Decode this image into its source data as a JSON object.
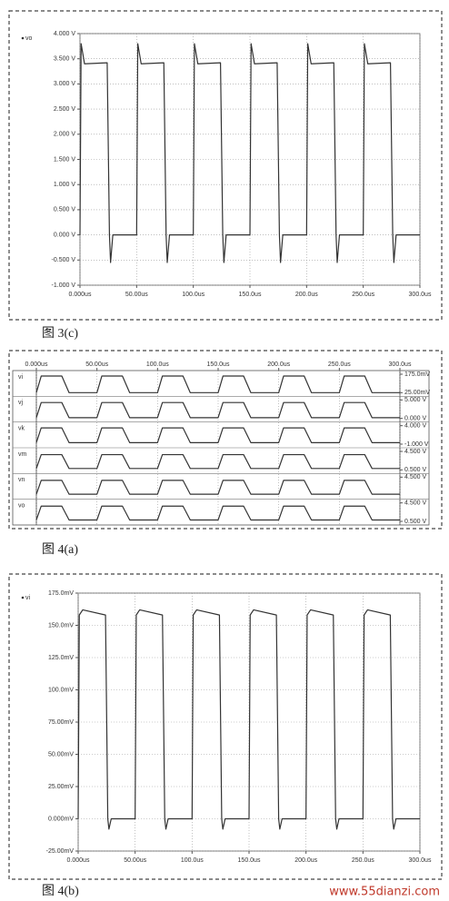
{
  "chart_data": [
    {
      "type": "line",
      "caption": "图 3(c)",
      "x": [
        0,
        1,
        4,
        24,
        26,
        27,
        29,
        50,
        51,
        54,
        74,
        76,
        77,
        79,
        100,
        101,
        104,
        124,
        126,
        127,
        129,
        150,
        151,
        154,
        174,
        176,
        177,
        179,
        200,
        201,
        204,
        224,
        226,
        227,
        229,
        250,
        251,
        254,
        274,
        276,
        277,
        279,
        300
      ],
      "series": [
        {
          "name": "vo",
          "color": "#333333",
          "values": [
            0,
            3.8,
            3.4,
            3.42,
            0,
            -0.55,
            0,
            0,
            3.8,
            3.4,
            3.42,
            0,
            -0.55,
            0,
            0,
            3.8,
            3.4,
            3.42,
            0,
            -0.55,
            0,
            0,
            3.8,
            3.4,
            3.42,
            0,
            -0.55,
            0,
            0,
            3.8,
            3.4,
            3.42,
            0,
            -0.55,
            0,
            0,
            3.8,
            3.4,
            3.42,
            0,
            -0.55,
            0,
            0
          ]
        }
      ],
      "xlim": [
        0,
        300
      ],
      "xticks": [
        {
          "value": 0,
          "label": "0.000us"
        },
        {
          "value": 50,
          "label": "50.00us"
        },
        {
          "value": 100,
          "label": "100.0us"
        },
        {
          "value": 150,
          "label": "150.0us"
        },
        {
          "value": 200,
          "label": "200.0us"
        },
        {
          "value": 250,
          "label": "250.0us"
        },
        {
          "value": 300,
          "label": "300.0us"
        }
      ],
      "ylim": [
        -1,
        4
      ],
      "yticks": [
        {
          "value": 4,
          "label": "4.000 V"
        },
        {
          "value": 3.5,
          "label": "3.500 V"
        },
        {
          "value": 3,
          "label": "3.000 V"
        },
        {
          "value": 2.5,
          "label": "2.500 V"
        },
        {
          "value": 2,
          "label": "2.000 V"
        },
        {
          "value": 1.5,
          "label": "1.500 V"
        },
        {
          "value": 1,
          "label": "1.000 V"
        },
        {
          "value": 0.5,
          "label": "0.500 V"
        },
        {
          "value": 0,
          "label": "0.000 V"
        },
        {
          "value": -0.5,
          "label": "-0.500 V"
        },
        {
          "value": -1,
          "label": "-1.000 V"
        }
      ],
      "grid": true
    },
    {
      "type": "strip",
      "caption": "图 4(a)",
      "color": "#333333",
      "x": [
        0,
        4,
        21,
        27,
        50,
        54,
        71,
        77,
        100,
        104,
        121,
        127,
        150,
        154,
        171,
        177,
        200,
        204,
        221,
        227,
        250,
        254,
        271,
        277,
        300
      ],
      "xlim": [
        0,
        300
      ],
      "xticks": [
        {
          "value": 0,
          "label": "0.000us"
        },
        {
          "value": 50,
          "label": "50.00us"
        },
        {
          "value": 100,
          "label": "100.0us"
        },
        {
          "value": 150,
          "label": "150.0us"
        },
        {
          "value": 200,
          "label": "200.0us"
        },
        {
          "value": 250,
          "label": "250.0us"
        },
        {
          "value": 300,
          "label": "300.0us"
        }
      ],
      "panels": [
        {
          "name": "vi",
          "ylim": [
            25,
            175
          ],
          "yticks": [
            {
              "value": 175,
              "label": "175.0mV"
            },
            {
              "value": 25,
              "label": "25.00mV"
            }
          ],
          "values": [
            25,
            160,
            160,
            25,
            25,
            160,
            160,
            25,
            25,
            160,
            160,
            25,
            25,
            160,
            160,
            25,
            25,
            160,
            160,
            25,
            25,
            160,
            160,
            25,
            25
          ]
        },
        {
          "name": "vj",
          "ylim": [
            0,
            5
          ],
          "yticks": [
            {
              "value": 5,
              "label": "5.000 V"
            },
            {
              "value": 0,
              "label": "0.000 V"
            }
          ],
          "values": [
            0.2,
            4.3,
            4.3,
            0.2,
            0.2,
            4.3,
            4.3,
            0.2,
            0.2,
            4.3,
            4.3,
            0.2,
            0.2,
            4.3,
            4.3,
            0.2,
            0.2,
            4.3,
            4.3,
            0.2,
            0.2,
            4.3,
            4.3,
            0.2,
            0.2
          ]
        },
        {
          "name": "vk",
          "ylim": [
            -1,
            4
          ],
          "yticks": [
            {
              "value": 4,
              "label": "4.000 V"
            },
            {
              "value": -1,
              "label": "-1.000 V"
            }
          ],
          "values": [
            -0.6,
            3.4,
            3.4,
            -0.6,
            -0.6,
            3.4,
            3.4,
            -0.6,
            -0.6,
            3.4,
            3.4,
            -0.6,
            -0.6,
            3.4,
            3.4,
            -0.6,
            -0.6,
            3.4,
            3.4,
            -0.6,
            -0.6,
            3.4,
            3.4,
            -0.6,
            -0.6
          ]
        },
        {
          "name": "vm",
          "ylim": [
            0.5,
            4.5
          ],
          "yticks": [
            {
              "value": 4.5,
              "label": "4.500 V"
            },
            {
              "value": 0.5,
              "label": "0.500 V"
            }
          ],
          "values": [
            0.8,
            3.8,
            3.8,
            0.8,
            0.8,
            3.8,
            3.8,
            0.8,
            0.8,
            3.8,
            3.8,
            0.8,
            0.8,
            3.8,
            3.8,
            0.8,
            0.8,
            3.8,
            3.8,
            0.8,
            0.8,
            3.8,
            3.8,
            0.8,
            0.8
          ]
        },
        {
          "name": "vn",
          "ylim": [
            0.5,
            4.5
          ],
          "yticks": [
            {
              "value": 4.5,
              "label": "4.500 V"
            }
          ],
          "values": [
            0.8,
            3.8,
            3.8,
            0.8,
            0.8,
            3.8,
            3.8,
            0.8,
            0.8,
            3.8,
            3.8,
            0.8,
            0.8,
            3.8,
            3.8,
            0.8,
            0.8,
            3.8,
            3.8,
            0.8,
            0.8,
            3.8,
            3.8,
            0.8,
            0.8
          ]
        },
        {
          "name": "vo",
          "ylim": [
            0.5,
            4.5
          ],
          "yticks": [
            {
              "value": 4.5,
              "label": "4.500 V"
            },
            {
              "value": 0.5,
              "label": "0.500 V"
            }
          ],
          "values": [
            0.8,
            3.8,
            3.8,
            0.8,
            0.8,
            3.8,
            3.8,
            0.8,
            0.8,
            3.8,
            3.8,
            0.8,
            0.8,
            3.8,
            3.8,
            0.8,
            0.8,
            3.8,
            3.8,
            0.8,
            0.8,
            3.8,
            3.8,
            0.8,
            0.8
          ]
        }
      ],
      "grid": true
    },
    {
      "type": "line",
      "caption": "图 4(b)",
      "x": [
        0,
        1,
        4,
        24,
        26,
        27,
        29,
        50,
        51,
        54,
        74,
        76,
        77,
        79,
        100,
        101,
        104,
        124,
        126,
        127,
        129,
        150,
        151,
        154,
        174,
        176,
        177,
        179,
        200,
        201,
        204,
        224,
        226,
        227,
        229,
        250,
        251,
        254,
        274,
        276,
        277,
        279,
        300
      ],
      "series": [
        {
          "name": "vi",
          "color": "#333333",
          "values": [
            0,
            158,
            162,
            158,
            0,
            -8,
            0,
            0,
            158,
            162,
            158,
            0,
            -8,
            0,
            0,
            158,
            162,
            158,
            0,
            -8,
            0,
            0,
            158,
            162,
            158,
            0,
            -8,
            0,
            0,
            158,
            162,
            158,
            0,
            -8,
            0,
            0,
            158,
            162,
            158,
            0,
            -8,
            0,
            0
          ]
        }
      ],
      "xlim": [
        0,
        300
      ],
      "xticks": [
        {
          "value": 0,
          "label": "0.000us"
        },
        {
          "value": 50,
          "label": "50.00us"
        },
        {
          "value": 100,
          "label": "100.0us"
        },
        {
          "value": 150,
          "label": "150.0us"
        },
        {
          "value": 200,
          "label": "200.0us"
        },
        {
          "value": 250,
          "label": "250.0us"
        },
        {
          "value": 300,
          "label": "300.0us"
        }
      ],
      "ylim": [
        -25,
        175
      ],
      "yticks": [
        {
          "value": 175,
          "label": "175.0mV"
        },
        {
          "value": 150,
          "label": "150.0mV"
        },
        {
          "value": 125,
          "label": "125.0mV"
        },
        {
          "value": 100,
          "label": "100.0mV"
        },
        {
          "value": 75,
          "label": "75.00mV"
        },
        {
          "value": 50,
          "label": "50.00mV"
        },
        {
          "value": 25,
          "label": "25.00mV"
        },
        {
          "value": 0,
          "label": "0.000mV"
        },
        {
          "value": -25,
          "label": "-25.00mV"
        }
      ],
      "grid": true
    }
  ],
  "watermark": "www.55dianzi.com"
}
